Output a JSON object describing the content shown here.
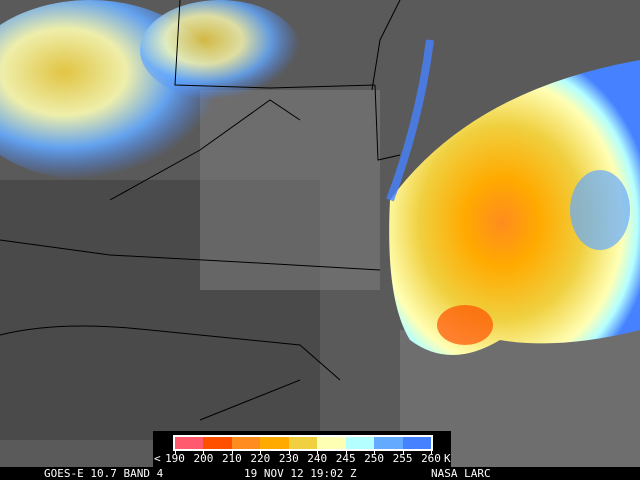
{
  "footer": {
    "satellite": "GOES-E 10.7 BAND 4",
    "datetime": "19 NOV 12 19:02 Z",
    "credit": "NASA LARC"
  },
  "legend": {
    "prefix": "<",
    "unit": "K",
    "tick_labels": [
      "190",
      "200",
      "210",
      "220",
      "230",
      "240",
      "245",
      "250",
      "255",
      "260"
    ],
    "colors": [
      "#ff5a6e",
      "#ff5000",
      "#ff8c1e",
      "#ffaa00",
      "#f0d040",
      "#ffffb4",
      "#b4ffff",
      "#64aaff",
      "#4682ff"
    ]
  },
  "image": {
    "background_gray": "#5a5a5a"
  }
}
